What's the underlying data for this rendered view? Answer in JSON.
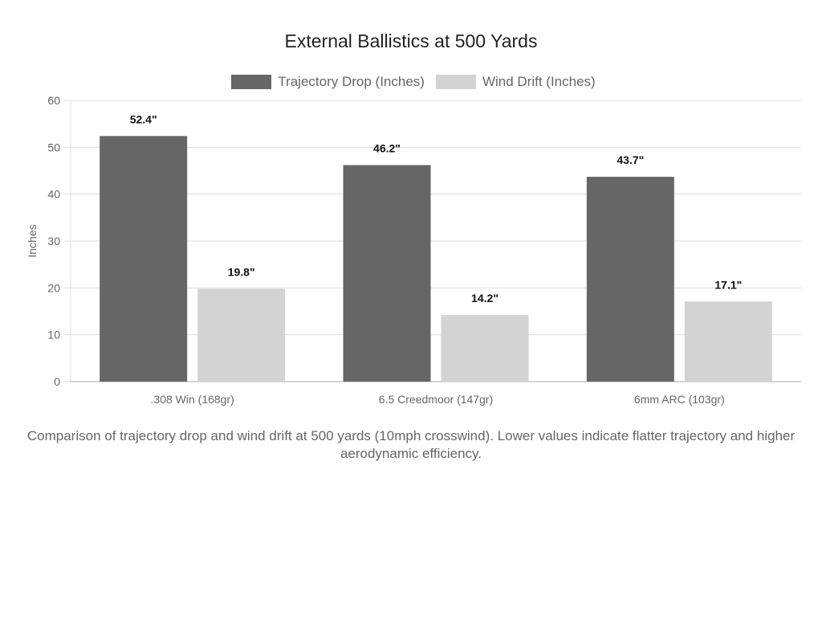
{
  "chart_data": {
    "type": "bar",
    "title": "External Ballistics at 500 Yards",
    "categories": [
      ".308 Win (168gr)",
      "6.5 Creedmoor (147gr)",
      "6mm ARC (103gr)"
    ],
    "series": [
      {
        "name": "Trajectory Drop (Inches)",
        "values": [
          52.4,
          46.2,
          43.7
        ],
        "color": "#666666",
        "labels": [
          "52.4\"",
          "46.2\"",
          "43.7\""
        ]
      },
      {
        "name": "Wind Drift (Inches)",
        "values": [
          19.8,
          14.2,
          17.1
        ],
        "color": "#d3d3d3",
        "labels": [
          "19.8\"",
          "14.2\"",
          "17.1\""
        ]
      }
    ],
    "xlabel": "",
    "ylabel": "Inches",
    "ylim": [
      0,
      60
    ],
    "yticks": [
      0,
      10,
      20,
      30,
      40,
      50,
      60
    ],
    "grid": true,
    "legend_position": "top"
  },
  "caption": "Comparison of trajectory drop and wind drift at 500 yards (10mph crosswind). Lower values indicate flatter trajectory and higher aerodynamic efficiency."
}
